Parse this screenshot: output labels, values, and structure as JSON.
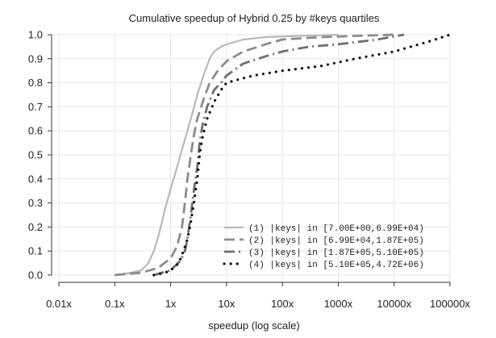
{
  "chart_data": {
    "type": "line",
    "title": "Cumulative speedup of Hybrid 0.25 by #keys quartiles",
    "xlabel": "speedup (log scale)",
    "ylabel": "",
    "x_scale": "log",
    "xlim": [
      0.01,
      100000
    ],
    "ylim": [
      0,
      1
    ],
    "x_ticks": [
      {
        "value": 0.01,
        "label": "0.01x"
      },
      {
        "value": 0.1,
        "label": "0.1x"
      },
      {
        "value": 1,
        "label": "1x"
      },
      {
        "value": 10,
        "label": "10x"
      },
      {
        "value": 100,
        "label": "100x"
      },
      {
        "value": 1000,
        "label": "1000x"
      },
      {
        "value": 10000,
        "label": "10000x"
      },
      {
        "value": 100000,
        "label": "100000x"
      }
    ],
    "y_ticks": [
      {
        "value": 0.0,
        "label": "0.0"
      },
      {
        "value": 0.1,
        "label": "0.1"
      },
      {
        "value": 0.2,
        "label": "0.2"
      },
      {
        "value": 0.3,
        "label": "0.3"
      },
      {
        "value": 0.4,
        "label": "0.4"
      },
      {
        "value": 0.5,
        "label": "0.5"
      },
      {
        "value": 0.6,
        "label": "0.6"
      },
      {
        "value": 0.7,
        "label": "0.7"
      },
      {
        "value": 0.8,
        "label": "0.8"
      },
      {
        "value": 0.9,
        "label": "0.9"
      },
      {
        "value": 1.0,
        "label": "1.0"
      }
    ],
    "grid": true,
    "legend_position": "bottom-right",
    "series": [
      {
        "name": "(1) |keys| in [7.00E+00,6.99E+04)",
        "color": "#b8b8b8",
        "style": "solid",
        "points": [
          [
            0.1,
            0.0
          ],
          [
            0.2,
            0.01
          ],
          [
            0.3,
            0.02
          ],
          [
            0.4,
            0.05
          ],
          [
            0.5,
            0.1
          ],
          [
            0.6,
            0.16
          ],
          [
            0.7,
            0.22
          ],
          [
            0.8,
            0.28
          ],
          [
            0.9,
            0.32
          ],
          [
            1.0,
            0.36
          ],
          [
            1.2,
            0.42
          ],
          [
            1.5,
            0.5
          ],
          [
            2.0,
            0.6
          ],
          [
            2.5,
            0.68
          ],
          [
            3.0,
            0.75
          ],
          [
            4.0,
            0.84
          ],
          [
            5.0,
            0.9
          ],
          [
            6.0,
            0.93
          ],
          [
            8.0,
            0.95
          ],
          [
            10.0,
            0.96
          ],
          [
            20.0,
            0.98
          ],
          [
            50.0,
            0.99
          ],
          [
            200.0,
            0.995
          ],
          [
            1000.0,
            1.0
          ]
        ]
      },
      {
        "name": "(2) |keys| in [6.99E+04,1.87E+05)",
        "color": "#8c8c8c",
        "style": "dashed",
        "points": [
          [
            0.1,
            0.0
          ],
          [
            0.3,
            0.01
          ],
          [
            0.6,
            0.03
          ],
          [
            1.0,
            0.07
          ],
          [
            1.3,
            0.12
          ],
          [
            1.6,
            0.2
          ],
          [
            1.8,
            0.3
          ],
          [
            2.0,
            0.4
          ],
          [
            2.3,
            0.5
          ],
          [
            2.6,
            0.58
          ],
          [
            3.0,
            0.65
          ],
          [
            4.0,
            0.74
          ],
          [
            5.0,
            0.8
          ],
          [
            7.0,
            0.85
          ],
          [
            10.0,
            0.89
          ],
          [
            20.0,
            0.93
          ],
          [
            50.0,
            0.96
          ],
          [
            100.0,
            0.98
          ],
          [
            500.0,
            0.99
          ],
          [
            2000.0,
            0.995
          ],
          [
            10000.0,
            1.0
          ]
        ]
      },
      {
        "name": "(3) |keys| in [1.87E+05,5.10E+05)",
        "color": "#6e6e6e",
        "style": "dashdot",
        "points": [
          [
            0.5,
            0.0
          ],
          [
            1.0,
            0.02
          ],
          [
            1.5,
            0.06
          ],
          [
            1.8,
            0.1
          ],
          [
            2.0,
            0.15
          ],
          [
            2.3,
            0.25
          ],
          [
            2.6,
            0.35
          ],
          [
            3.0,
            0.45
          ],
          [
            3.3,
            0.55
          ],
          [
            3.7,
            0.62
          ],
          [
            4.5,
            0.7
          ],
          [
            6.0,
            0.77
          ],
          [
            8.0,
            0.8
          ],
          [
            10.0,
            0.83
          ],
          [
            20.0,
            0.88
          ],
          [
            50.0,
            0.91
          ],
          [
            100.0,
            0.93
          ],
          [
            300.0,
            0.95
          ],
          [
            1000.0,
            0.96
          ],
          [
            5000.0,
            0.98
          ],
          [
            15000.0,
            1.0
          ]
        ]
      },
      {
        "name": "(4) |keys| in [5.10E+05,4.72E+06)",
        "color": "#111111",
        "style": "dotted",
        "points": [
          [
            0.5,
            0.0
          ],
          [
            0.8,
            0.01
          ],
          [
            1.0,
            0.02
          ],
          [
            1.4,
            0.05
          ],
          [
            1.7,
            0.1
          ],
          [
            2.0,
            0.15
          ],
          [
            2.3,
            0.22
          ],
          [
            2.6,
            0.3
          ],
          [
            3.0,
            0.4
          ],
          [
            3.3,
            0.5
          ],
          [
            3.7,
            0.57
          ],
          [
            4.5,
            0.65
          ],
          [
            6.0,
            0.72
          ],
          [
            8.0,
            0.77
          ],
          [
            10.0,
            0.8
          ],
          [
            30.0,
            0.83
          ],
          [
            100.0,
            0.85
          ],
          [
            500.0,
            0.87
          ],
          [
            2000.0,
            0.9
          ],
          [
            10000.0,
            0.93
          ],
          [
            40000.0,
            0.97
          ],
          [
            100000.0,
            1.0
          ]
        ]
      }
    ]
  }
}
